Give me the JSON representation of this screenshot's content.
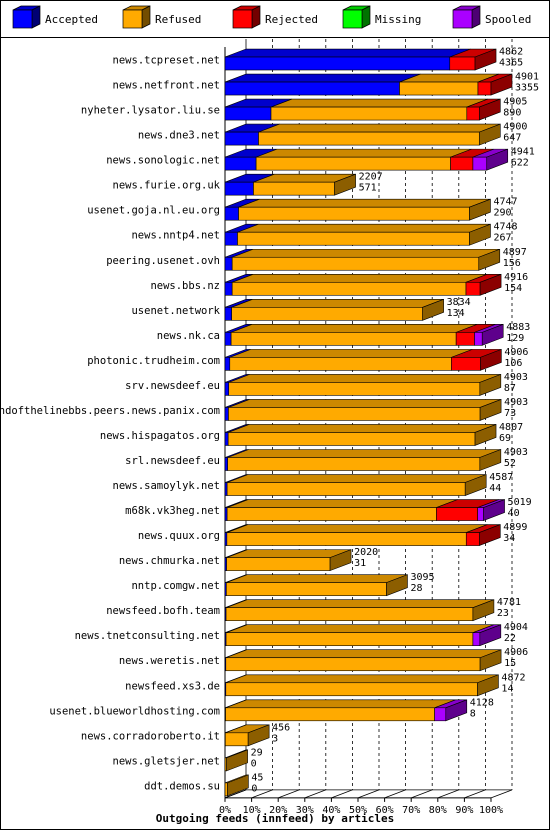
{
  "chart_data": {
    "type": "bar",
    "orientation": "horizontal",
    "stacked": true,
    "style": "3d",
    "title": "",
    "xlabel": "Outgoing feeds (innfeed) by articles",
    "ylabel": "",
    "xlim": [
      0,
      100
    ],
    "x_ticks": [
      "0%",
      "10%",
      "20%",
      "30%",
      "40%",
      "50%",
      "60%",
      "70%",
      "80%",
      "90%",
      "100%"
    ],
    "grid": "vertical dashed",
    "legend_position": "top",
    "legend": [
      {
        "name": "Accepted",
        "color": "#0000ff"
      },
      {
        "name": "Refused",
        "color": "#ffaa00"
      },
      {
        "name": "Rejected",
        "color": "#ff0000"
      },
      {
        "name": "Missing",
        "color": "#00ff00"
      },
      {
        "name": "Spooled",
        "color": "#aa00ff"
      }
    ],
    "rows": [
      {
        "label": "news.tcpreset.net",
        "offered": "4862",
        "accepted": "4365",
        "segments": [
          84.5,
          0,
          9.5,
          0,
          0
        ]
      },
      {
        "label": "news.netfront.net",
        "offered": "4901",
        "accepted": "3355",
        "segments": [
          65.6,
          29.5,
          4.9,
          0,
          0
        ]
      },
      {
        "label": "nyheter.lysator.liu.se",
        "offered": "4905",
        "accepted": "890",
        "segments": [
          17.3,
          73.6,
          4.7,
          0,
          0
        ]
      },
      {
        "label": "news.dne3.net",
        "offered": "4900",
        "accepted": "647",
        "segments": [
          12.6,
          83.0,
          0,
          0,
          0
        ]
      },
      {
        "label": "news.sonologic.net",
        "offered": "4941",
        "accepted": "622",
        "segments": [
          11.7,
          73.1,
          8.4,
          0,
          5.2
        ]
      },
      {
        "label": "news.furie.org.uk",
        "offered": "2207",
        "accepted": "571",
        "segments": [
          10.7,
          30.5,
          0,
          0,
          0
        ]
      },
      {
        "label": "usenet.goja.nl.eu.org",
        "offered": "4747",
        "accepted": "290",
        "segments": [
          5.1,
          86.8,
          0,
          0,
          0
        ]
      },
      {
        "label": "news.nntp4.net",
        "offered": "4748",
        "accepted": "267",
        "segments": [
          4.7,
          87.2,
          0,
          0,
          0
        ]
      },
      {
        "label": "peering.usenet.ovh",
        "offered": "4897",
        "accepted": "156",
        "segments": [
          2.7,
          92.7,
          0,
          0,
          0
        ]
      },
      {
        "label": "news.bbs.nz",
        "offered": "4916",
        "accepted": "154",
        "segments": [
          2.7,
          87.9,
          5.3,
          0,
          0
        ]
      },
      {
        "label": "usenet.network",
        "offered": "3834",
        "accepted": "134",
        "segments": [
          2.5,
          71.8,
          0,
          0,
          0
        ]
      },
      {
        "label": "news.nk.ca",
        "offered": "4883",
        "accepted": "129",
        "segments": [
          2.3,
          84.6,
          6.9,
          0,
          2.9
        ]
      },
      {
        "label": "photonic.trudheim.com",
        "offered": "4906",
        "accepted": "106",
        "segments": [
          1.8,
          83.3,
          10.9,
          0,
          0
        ]
      },
      {
        "label": "srv.newsdeef.eu",
        "offered": "4903",
        "accepted": "87",
        "segments": [
          1.4,
          94.4,
          0,
          0,
          0
        ]
      },
      {
        "label": "endofthelinebbs.peers.news.panix.com",
        "offered": "4903",
        "accepted": "73",
        "segments": [
          1.3,
          94.6,
          0,
          0,
          0
        ]
      },
      {
        "label": "news.hispagatos.org",
        "offered": "4807",
        "accepted": "69",
        "segments": [
          1.2,
          92.8,
          0,
          0,
          0
        ]
      },
      {
        "label": "srl.newsdeef.eu",
        "offered": "4903",
        "accepted": "52",
        "segments": [
          1.0,
          94.8,
          0,
          0,
          0
        ]
      },
      {
        "label": "news.samoylyk.net",
        "offered": "4587",
        "accepted": "44",
        "segments": [
          0.8,
          89.5,
          0,
          0,
          0
        ]
      },
      {
        "label": "m68k.vk3heg.net",
        "offered": "5019",
        "accepted": "40",
        "segments": [
          0.8,
          78.7,
          15.5,
          0,
          2.2
        ]
      },
      {
        "label": "news.quux.org",
        "offered": "4899",
        "accepted": "34",
        "segments": [
          0.7,
          90.0,
          4.9,
          0,
          0
        ]
      },
      {
        "label": "news.chmurka.net",
        "offered": "2020",
        "accepted": "31",
        "segments": [
          0.6,
          38.9,
          0,
          0,
          0
        ]
      },
      {
        "label": "nntp.comgw.net",
        "offered": "3095",
        "accepted": "28",
        "segments": [
          0.5,
          60.2,
          0,
          0,
          0
        ]
      },
      {
        "label": "newsfeed.bofh.team",
        "offered": "4781",
        "accepted": "23",
        "segments": [
          0.4,
          92.8,
          0,
          0,
          0
        ]
      },
      {
        "label": "news.tnetconsulting.net",
        "offered": "4904",
        "accepted": "22",
        "segments": [
          0.4,
          92.8,
          0,
          0,
          2.6
        ]
      },
      {
        "label": "news.weretis.net",
        "offered": "4906",
        "accepted": "15",
        "segments": [
          0.3,
          95.6,
          0,
          0,
          0
        ]
      },
      {
        "label": "newsfeed.xs3.de",
        "offered": "4872",
        "accepted": "14",
        "segments": [
          0.3,
          94.6,
          0,
          0,
          0
        ]
      },
      {
        "label": "usenet.blueworldhosting.com",
        "offered": "4128",
        "accepted": "8",
        "segments": [
          0.2,
          78.6,
          0,
          0,
          4.2
        ]
      },
      {
        "label": "news.corradoroberto.it",
        "offered": "456",
        "accepted": "3",
        "segments": [
          0.1,
          8.6,
          0,
          0,
          0
        ]
      },
      {
        "label": "news.gletsjer.net",
        "offered": "29",
        "accepted": "0",
        "segments": [
          0,
          0.6,
          0,
          0,
          0
        ]
      },
      {
        "label": "ddt.demos.su",
        "offered": "45",
        "accepted": "0",
        "segments": [
          0,
          0.9,
          0,
          0,
          0
        ]
      }
    ]
  }
}
